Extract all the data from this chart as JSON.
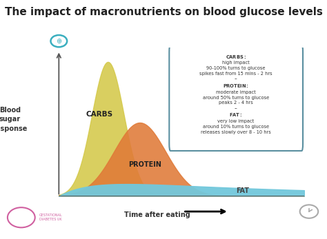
{
  "title": "The impact of macronutrients on blood glucose levels",
  "title_fontsize": 11,
  "background_color": "#ffffff",
  "ylabel": "Blood\nsugar\nresponse",
  "xlabel": "Time after eating",
  "carbs_color": "#d4c94a",
  "protein_color": "#e07a38",
  "fat_color": "#72c8dc",
  "carbs_label": "CARBS",
  "protein_label": "PROTEIN",
  "fat_label": "FAT",
  "legend_title_carbs": "CARBS:",
  "legend_carbs_line1": "high impact",
  "legend_carbs_line2": "90-100% turns to glucose",
  "legend_carbs_line3": "spikes fast from 15 mins - 2 hrs",
  "legend_sep1": "--",
  "legend_title_protein": "PROTEIN:",
  "legend_protein_line1": "moderate impact",
  "legend_protein_line2": "around 50% turns to glucose",
  "legend_protein_line3": "peaks 2 - 4 hrs",
  "legend_sep2": "--",
  "legend_title_fat": "FAT:",
  "legend_fat_line1": "very low impact",
  "legend_fat_line2": "around 10% turns to glucose",
  "legend_fat_line3": "releases slowly over 8 - 10 hrs",
  "axis_color": "#555555",
  "text_color": "#333333",
  "legend_border_color": "#5a8fa0",
  "label_fontsize": 7,
  "curve_label_fontsize": 7.5
}
